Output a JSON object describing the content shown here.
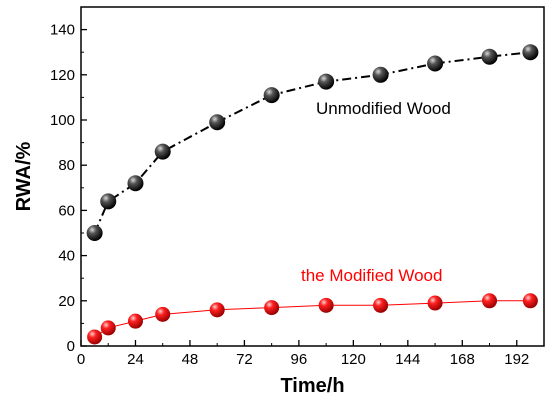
{
  "chart_data": {
    "type": "line",
    "title": "",
    "xlabel": "Time/h",
    "ylabel": "RWA/%",
    "xlim": [
      0,
      204
    ],
    "ylim": [
      0,
      150
    ],
    "xticks": [
      0,
      24,
      48,
      72,
      96,
      120,
      144,
      168,
      192
    ],
    "yticks": [
      0,
      20,
      40,
      60,
      80,
      100,
      120,
      140
    ],
    "grid": false,
    "series": [
      {
        "name": "Unmodified Wood",
        "color": "#000000",
        "line_style": "dash-dot",
        "x": [
          6,
          12,
          24,
          36,
          60,
          84,
          108,
          132,
          156,
          180,
          198
        ],
        "y": [
          50,
          64,
          72,
          86,
          99,
          111,
          117,
          120,
          125,
          128,
          130
        ]
      },
      {
        "name": "the Modified Wood",
        "color": "#ff0000",
        "line_style": "solid",
        "x": [
          6,
          12,
          24,
          36,
          60,
          84,
          108,
          132,
          156,
          180,
          198
        ],
        "y": [
          4,
          8,
          11,
          14,
          16,
          17,
          18,
          18,
          19,
          20,
          20
        ]
      }
    ]
  }
}
